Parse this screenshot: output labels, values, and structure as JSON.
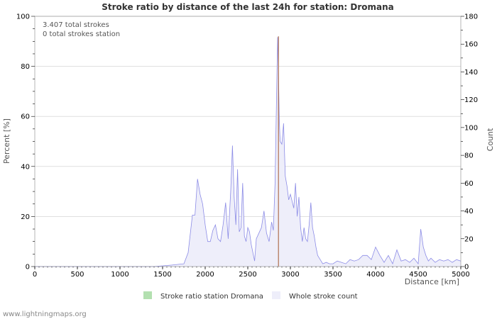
{
  "chart_data": {
    "type": "area",
    "title": "Stroke ratio by distance of the last 24h for station: Dromana",
    "xlabel": "Distance   [km]",
    "ylabel_left": "Percent   [%]",
    "ylabel_right": "Count",
    "xlim": [
      0,
      5000
    ],
    "ylim_left": [
      0,
      100
    ],
    "ylim_right": [
      0,
      180
    ],
    "x_ticks": [
      0,
      500,
      1000,
      1500,
      2000,
      2500,
      3000,
      3500,
      4000,
      4500,
      5000
    ],
    "y_ticks_left": [
      0,
      20,
      40,
      60,
      80,
      100
    ],
    "y_ticks_right": [
      0,
      20,
      40,
      60,
      80,
      100,
      120,
      140,
      160,
      180
    ],
    "grid": true,
    "annotations": [
      "3.407 total strokes",
      "0 total strokes station"
    ],
    "legend": {
      "position": "bottom",
      "entries": [
        {
          "label": "Stroke ratio station Dromana",
          "color": "#b3e0b0"
        },
        {
          "label": "Whole stroke count",
          "color": "#eeeefa"
        }
      ]
    },
    "series": [
      {
        "name": "Stroke ratio station Dromana",
        "axis": "left",
        "color": "#b3e0b0",
        "x": [
          2860
        ],
        "values": [
          92
        ]
      },
      {
        "name": "Whole stroke count",
        "axis": "right",
        "color": "#8c8ce6",
        "fill": "#eeeefa",
        "x": [
          0,
          1400,
          1600,
          1750,
          1800,
          1850,
          1880,
          1910,
          1940,
          1970,
          2000,
          2030,
          2060,
          2090,
          2120,
          2150,
          2180,
          2210,
          2240,
          2270,
          2300,
          2320,
          2340,
          2360,
          2380,
          2400,
          2420,
          2440,
          2460,
          2480,
          2500,
          2520,
          2540,
          2560,
          2580,
          2600,
          2630,
          2660,
          2690,
          2720,
          2750,
          2780,
          2800,
          2820,
          2840,
          2850,
          2860,
          2870,
          2880,
          2900,
          2920,
          2940,
          2960,
          2980,
          3000,
          3020,
          3040,
          3060,
          3080,
          3100,
          3120,
          3140,
          3160,
          3180,
          3200,
          3220,
          3240,
          3260,
          3280,
          3300,
          3320,
          3350,
          3380,
          3420,
          3460,
          3500,
          3550,
          3600,
          3650,
          3700,
          3750,
          3800,
          3850,
          3900,
          3950,
          4000,
          4050,
          4100,
          4150,
          4200,
          4250,
          4300,
          4350,
          4400,
          4450,
          4500,
          4530,
          4560,
          4590,
          4620,
          4650,
          4700,
          4750,
          4800,
          4850,
          4900,
          4950,
          5000
        ],
        "values": [
          0,
          0,
          1,
          2,
          10,
          37,
          37,
          63,
          52,
          45,
          30,
          18,
          18,
          26,
          30,
          20,
          18,
          30,
          46,
          20,
          55,
          87,
          50,
          30,
          70,
          25,
          28,
          60,
          22,
          18,
          28,
          25,
          16,
          10,
          4,
          20,
          24,
          28,
          40,
          24,
          18,
          32,
          26,
          60,
          130,
          165,
          140,
          105,
          90,
          88,
          103,
          65,
          58,
          48,
          52,
          47,
          42,
          60,
          36,
          50,
          28,
          18,
          28,
          20,
          18,
          30,
          46,
          28,
          22,
          14,
          8,
          5,
          2,
          3,
          2,
          2,
          4,
          3,
          2,
          5,
          4,
          5,
          8,
          8,
          5,
          14,
          8,
          3,
          8,
          2,
          12,
          4,
          5,
          3,
          6,
          2,
          27,
          14,
          8,
          4,
          6,
          3,
          5,
          4,
          5,
          3,
          5,
          4
        ]
      }
    ]
  },
  "footer": "www.lightningmaps.org"
}
